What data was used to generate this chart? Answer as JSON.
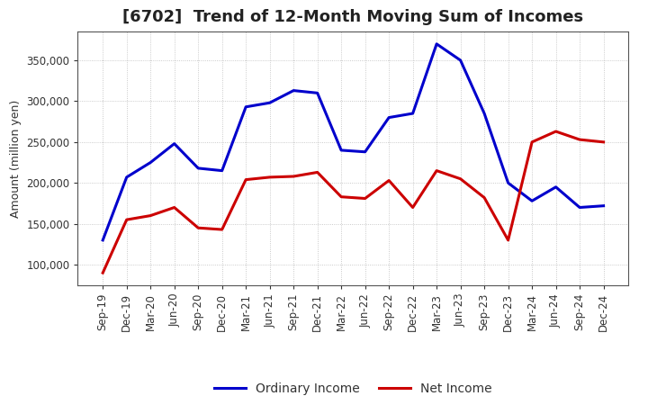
{
  "title": "[6702]  Trend of 12-Month Moving Sum of Incomes",
  "ylabel": "Amount (million yen)",
  "background_color": "#ffffff",
  "plot_background_color": "#ffffff",
  "grid_color": "#bbbbbb",
  "x_labels": [
    "Sep-19",
    "Dec-19",
    "Mar-20",
    "Jun-20",
    "Sep-20",
    "Dec-20",
    "Mar-21",
    "Jun-21",
    "Sep-21",
    "Dec-21",
    "Mar-22",
    "Jun-22",
    "Sep-22",
    "Dec-22",
    "Mar-23",
    "Jun-23",
    "Sep-23",
    "Dec-23",
    "Mar-24",
    "Jun-24",
    "Sep-24",
    "Dec-24"
  ],
  "ordinary_income": [
    130000,
    207000,
    225000,
    248000,
    218000,
    215000,
    293000,
    298000,
    313000,
    310000,
    240000,
    238000,
    280000,
    285000,
    370000,
    350000,
    285000,
    200000,
    178000,
    195000,
    170000,
    172000
  ],
  "net_income": [
    90000,
    155000,
    160000,
    170000,
    145000,
    143000,
    204000,
    207000,
    208000,
    213000,
    183000,
    181000,
    203000,
    170000,
    215000,
    205000,
    182000,
    130000,
    250000,
    263000,
    253000,
    250000
  ],
  "ordinary_color": "#0000cc",
  "net_color": "#cc0000",
  "ylim": [
    75000,
    385000
  ],
  "yticks": [
    100000,
    150000,
    200000,
    250000,
    300000,
    350000
  ],
  "line_width": 2.2,
  "title_fontsize": 13,
  "tick_fontsize": 8.5,
  "legend_labels": [
    "Ordinary Income",
    "Net Income"
  ],
  "legend_fontsize": 10
}
